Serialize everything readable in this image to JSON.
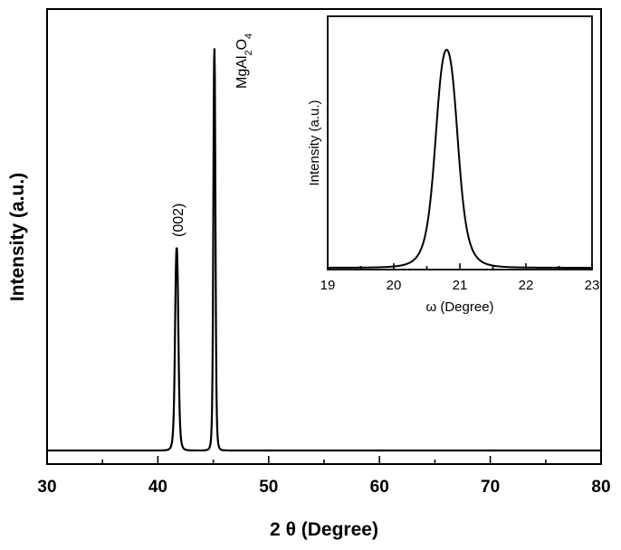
{
  "chart_data": [
    {
      "type": "line",
      "xlabel_prefix": "2 ",
      "xlabel_symbol": "θ",
      "xlabel_suffix": " (Degree)",
      "ylabel": "Intensity (a.u.)",
      "xlim": [
        30,
        80
      ],
      "ylim": [
        0,
        1
      ],
      "x_ticks": [
        30,
        40,
        50,
        60,
        70,
        80
      ],
      "y_ticks_labeled": false,
      "grid": false,
      "peaks": [
        {
          "center": 41.7,
          "height": 0.5,
          "width": 0.17
        },
        {
          "center": 45.1,
          "height": 0.99,
          "width": 0.11
        }
      ],
      "baseline": 0.0,
      "annotations": [
        {
          "text": "(002)",
          "x": 41.7,
          "y": 0.52
        },
        {
          "text_main": "MgAl",
          "sub1": "2",
          "text_mid": "O",
          "sub2": "4",
          "x": 45.1,
          "y": 0.99
        }
      ]
    },
    {
      "type": "line",
      "xlabel_symbol": "ω",
      "xlabel_suffix": " (Degree)",
      "ylabel": "Intensity (a.u.)",
      "xlim": [
        19,
        23
      ],
      "ylim": [
        0,
        1
      ],
      "x_ticks": [
        19,
        20,
        21,
        22,
        23
      ],
      "y_ticks_labeled": false,
      "grid": false,
      "peaks": [
        {
          "center": 20.8,
          "height": 0.92,
          "width": 0.19
        }
      ],
      "baseline": 0.0
    }
  ]
}
